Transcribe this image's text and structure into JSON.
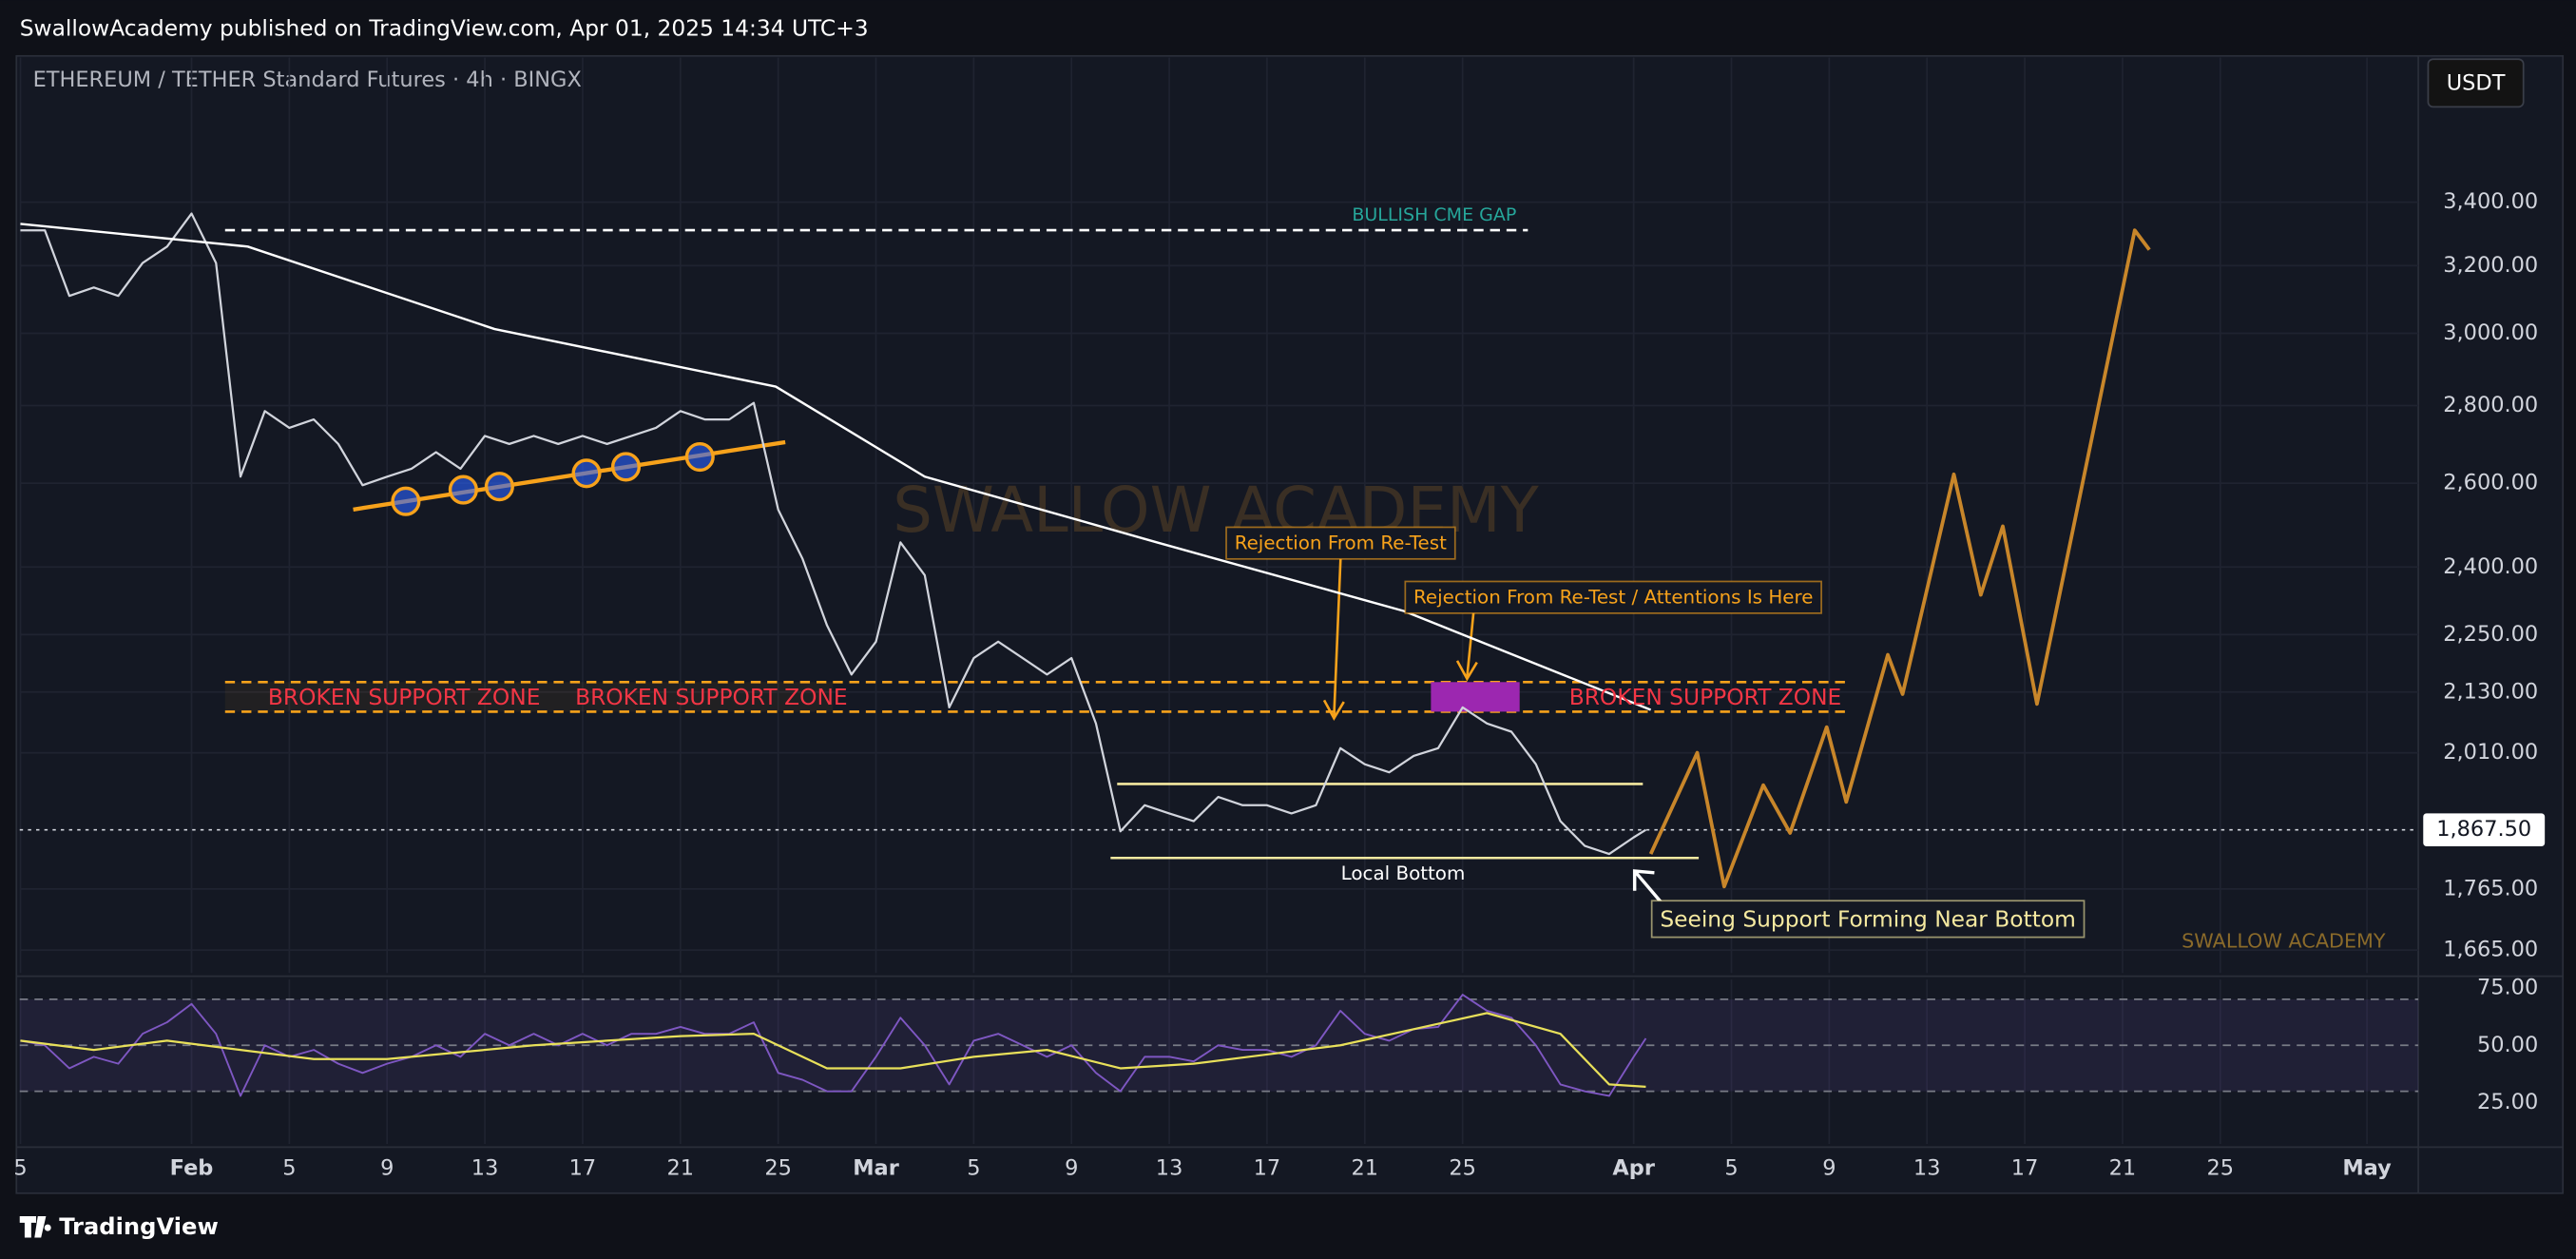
{
  "header": {
    "published": "SwallowAcademy published on TradingView.com, Apr 01, 2025 14:34 UTC+3",
    "currency": "USDT"
  },
  "footer": {
    "logo": "TradingView"
  },
  "chart_data": [
    {
      "type": "line",
      "title": "ETHEREUM / TETHER Standard Futures · 4h · BINGX",
      "log": true,
      "xlim": [
        24.97,
        123.1
      ],
      "ylim": [
        1629,
        3903
      ],
      "yticks": [
        {
          "value": 1665,
          "label": "1,665.00"
        },
        {
          "value": 1765,
          "label": "1,765.00"
        },
        {
          "value": 2010,
          "label": "2,010.00"
        },
        {
          "value": 2130,
          "label": "2,130.00"
        },
        {
          "value": 2250,
          "label": "2,250.00"
        },
        {
          "value": 2400,
          "label": "2,400.00"
        },
        {
          "value": 2600,
          "label": "2,600.00"
        },
        {
          "value": 2800,
          "label": "2,800.00"
        },
        {
          "value": 3000,
          "label": "3,000.00"
        },
        {
          "value": 3200,
          "label": "3,200.00"
        },
        {
          "value": 3400,
          "label": "3,400.00"
        }
      ],
      "last_price": {
        "value": 1867.5,
        "label": "1,867.50"
      },
      "grid": true,
      "series": [
        {
          "color": "#d1d4dc",
          "x": [
            25,
            26,
            27,
            28,
            29,
            30,
            31,
            32,
            33,
            34,
            35,
            36,
            37,
            38,
            39,
            40,
            41,
            42,
            43,
            44,
            45,
            46,
            47,
            48,
            49,
            50,
            51,
            52,
            53,
            54,
            55,
            56,
            57,
            58,
            59,
            60,
            61,
            62,
            63,
            64,
            65,
            66,
            67,
            68,
            69,
            70,
            71,
            72,
            73,
            74,
            75,
            76,
            77,
            78,
            79,
            80,
            81,
            82,
            83,
            84,
            85,
            86,
            87,
            88,
            89,
            90,
            91,
            91.5
          ],
          "values": [
            3310,
            3310,
            3109,
            3134,
            3109,
            3208,
            3259,
            3363,
            3208,
            2616,
            2785,
            2741,
            2763,
            2699,
            2595,
            2616,
            2636,
            2678,
            2636,
            2720,
            2699,
            2720,
            2699,
            2720,
            2699,
            2720,
            2741,
            2785,
            2763,
            2763,
            2807,
            2535,
            2419,
            2270,
            2166,
            2235,
            2457,
            2381,
            2099,
            2200,
            2235,
            2200,
            2166,
            2200,
            2067,
            1865,
            1912,
            1897,
            1883,
            1927,
            1912,
            1912,
            1897,
            1912,
            2019,
            1988,
            1973,
            2004,
            2019,
            2099,
            2067,
            2051,
            1988,
            1883,
            1839,
            1825,
            1854,
            1867.5
          ]
        },
        {
          "color": "#ffffff",
          "x": [
            25,
            34.3,
            44.4,
            55.9,
            62,
            71.5,
            81.6,
            91.7
          ],
          "values": [
            3330,
            3259,
            3012,
            2851,
            2616,
            2457,
            2301,
            2094
          ]
        },
        {
          "color": "#c8862a",
          "x": [
            91.7,
            93.6,
            94.7,
            96.3,
            97.4,
            98.9,
            99.7,
            101.4,
            102,
            104.1,
            105.2,
            106.1,
            107.5,
            111.5,
            112.1
          ],
          "values": [
            1825,
            2010,
            1769,
            1949,
            1862,
            2060,
            1918,
            2207,
            2126,
            2622,
            2337,
            2495,
            2106,
            3310,
            3249
          ]
        }
      ],
      "annotations": [
        "BULLISH CME GAP",
        "BROKEN SUPPORT ZONE",
        "BROKEN SUPPORT ZONE",
        "BROKEN SUPPORT ZONE",
        "Rejection From Re-Test",
        "Rejection From Re-Test / Attentions Is Here",
        "Local Bottom",
        "Seeing Support Forming Near Bottom"
      ],
      "watermark": "SWALLOW ACADEMY",
      "signature": "SWALLOW ACADEMY"
    },
    {
      "type": "line",
      "xlim": [
        24.97,
        123.1
      ],
      "ylim": [
        7.1,
        78.6
      ],
      "yticks": [
        {
          "value": 25,
          "label": "25.00"
        },
        {
          "value": 50,
          "label": "50.00"
        },
        {
          "value": 75,
          "label": "75.00"
        }
      ],
      "levels": [
        70,
        50,
        30
      ],
      "xticks": [
        {
          "value": 25,
          "label": "5"
        },
        {
          "value": 32,
          "label": "Feb"
        },
        {
          "value": 36,
          "label": "5"
        },
        {
          "value": 40,
          "label": "9"
        },
        {
          "value": 44,
          "label": "13"
        },
        {
          "value": 48,
          "label": "17"
        },
        {
          "value": 52,
          "label": "21"
        },
        {
          "value": 56,
          "label": "25"
        },
        {
          "value": 60,
          "label": "Mar"
        },
        {
          "value": 64,
          "label": "5"
        },
        {
          "value": 68,
          "label": "9"
        },
        {
          "value": 72,
          "label": "13"
        },
        {
          "value": 76,
          "label": "17"
        },
        {
          "value": 80,
          "label": "21"
        },
        {
          "value": 84,
          "label": "25"
        },
        {
          "value": 91,
          "label": "Apr"
        },
        {
          "value": 95,
          "label": "5"
        },
        {
          "value": 99,
          "label": "9"
        },
        {
          "value": 103,
          "label": "13"
        },
        {
          "value": 107,
          "label": "17"
        },
        {
          "value": 111,
          "label": "21"
        },
        {
          "value": 115,
          "label": "25"
        },
        {
          "value": 121,
          "label": "May"
        }
      ],
      "series": [
        {
          "color": "#7e57c2",
          "x": [
            25,
            26,
            27,
            28,
            29,
            30,
            31,
            32,
            33,
            34,
            35,
            36,
            37,
            38,
            39,
            40,
            41,
            42,
            43,
            44,
            45,
            46,
            47,
            48,
            49,
            50,
            51,
            52,
            53,
            54,
            55,
            56,
            57,
            58,
            59,
            60,
            61,
            62,
            63,
            64,
            65,
            66,
            67,
            68,
            69,
            70,
            71,
            72,
            73,
            74,
            75,
            76,
            77,
            78,
            79,
            80,
            81,
            82,
            83,
            84,
            85,
            86,
            87,
            88,
            89,
            90,
            91,
            91.5
          ],
          "values": [
            52,
            50,
            40,
            45,
            42,
            55,
            60,
            68,
            55,
            28,
            50,
            45,
            48,
            42,
            38,
            42,
            45,
            50,
            45,
            55,
            50,
            55,
            50,
            55,
            50,
            55,
            55,
            58,
            55,
            55,
            60,
            38,
            35,
            30,
            30,
            45,
            62,
            50,
            33,
            52,
            55,
            50,
            45,
            50,
            38,
            30,
            45,
            45,
            43,
            50,
            48,
            48,
            45,
            50,
            65,
            55,
            52,
            57,
            58,
            72,
            65,
            62,
            50,
            33,
            30,
            28,
            45,
            53
          ]
        },
        {
          "color": "#e8e05a",
          "x": [
            25,
            28,
            31,
            34,
            37,
            40,
            43,
            46,
            49,
            52,
            55,
            58,
            61,
            64,
            67,
            70,
            73,
            76,
            79,
            82,
            85,
            88,
            90,
            91.5
          ],
          "values": [
            52,
            48,
            52,
            48,
            44,
            44,
            47,
            50,
            52,
            54,
            55,
            40,
            40,
            45,
            48,
            40,
            42,
            46,
            50,
            57,
            64,
            55,
            33,
            32
          ]
        }
      ]
    }
  ]
}
